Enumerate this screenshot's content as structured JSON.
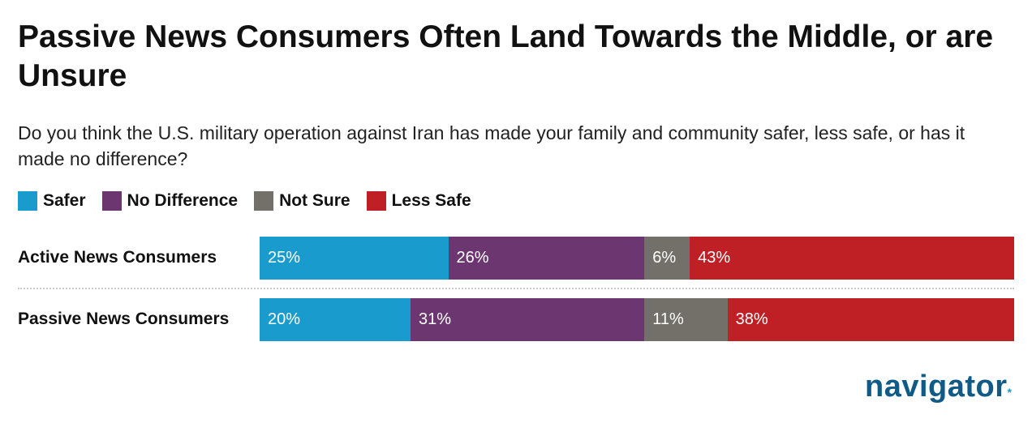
{
  "chart_data": {
    "type": "bar",
    "orientation": "horizontal",
    "stacked": true,
    "title": "Passive News Consumers Often Land Towards the Middle, or are Unsure",
    "subtitle": "Do you think the U.S. military operation against Iran has made your family and community safer, less safe, or has it made no difference?",
    "legend_position": "top-left",
    "categories": [
      "Active News Consumers",
      "Passive News Consumers"
    ],
    "series": [
      {
        "name": "Safer",
        "color": "#1a9bce",
        "values": [
          25,
          20
        ]
      },
      {
        "name": "No Difference",
        "color": "#6c3670",
        "values": [
          26,
          31
        ]
      },
      {
        "name": "Not Sure",
        "color": "#727068",
        "values": [
          6,
          11
        ]
      },
      {
        "name": "Less Safe",
        "color": "#be2026",
        "values": [
          43,
          38
        ]
      }
    ],
    "value_suffix": "%"
  },
  "brand": {
    "logo_text": "navigator",
    "logo_mark": "*",
    "color": "#0f5a86"
  }
}
